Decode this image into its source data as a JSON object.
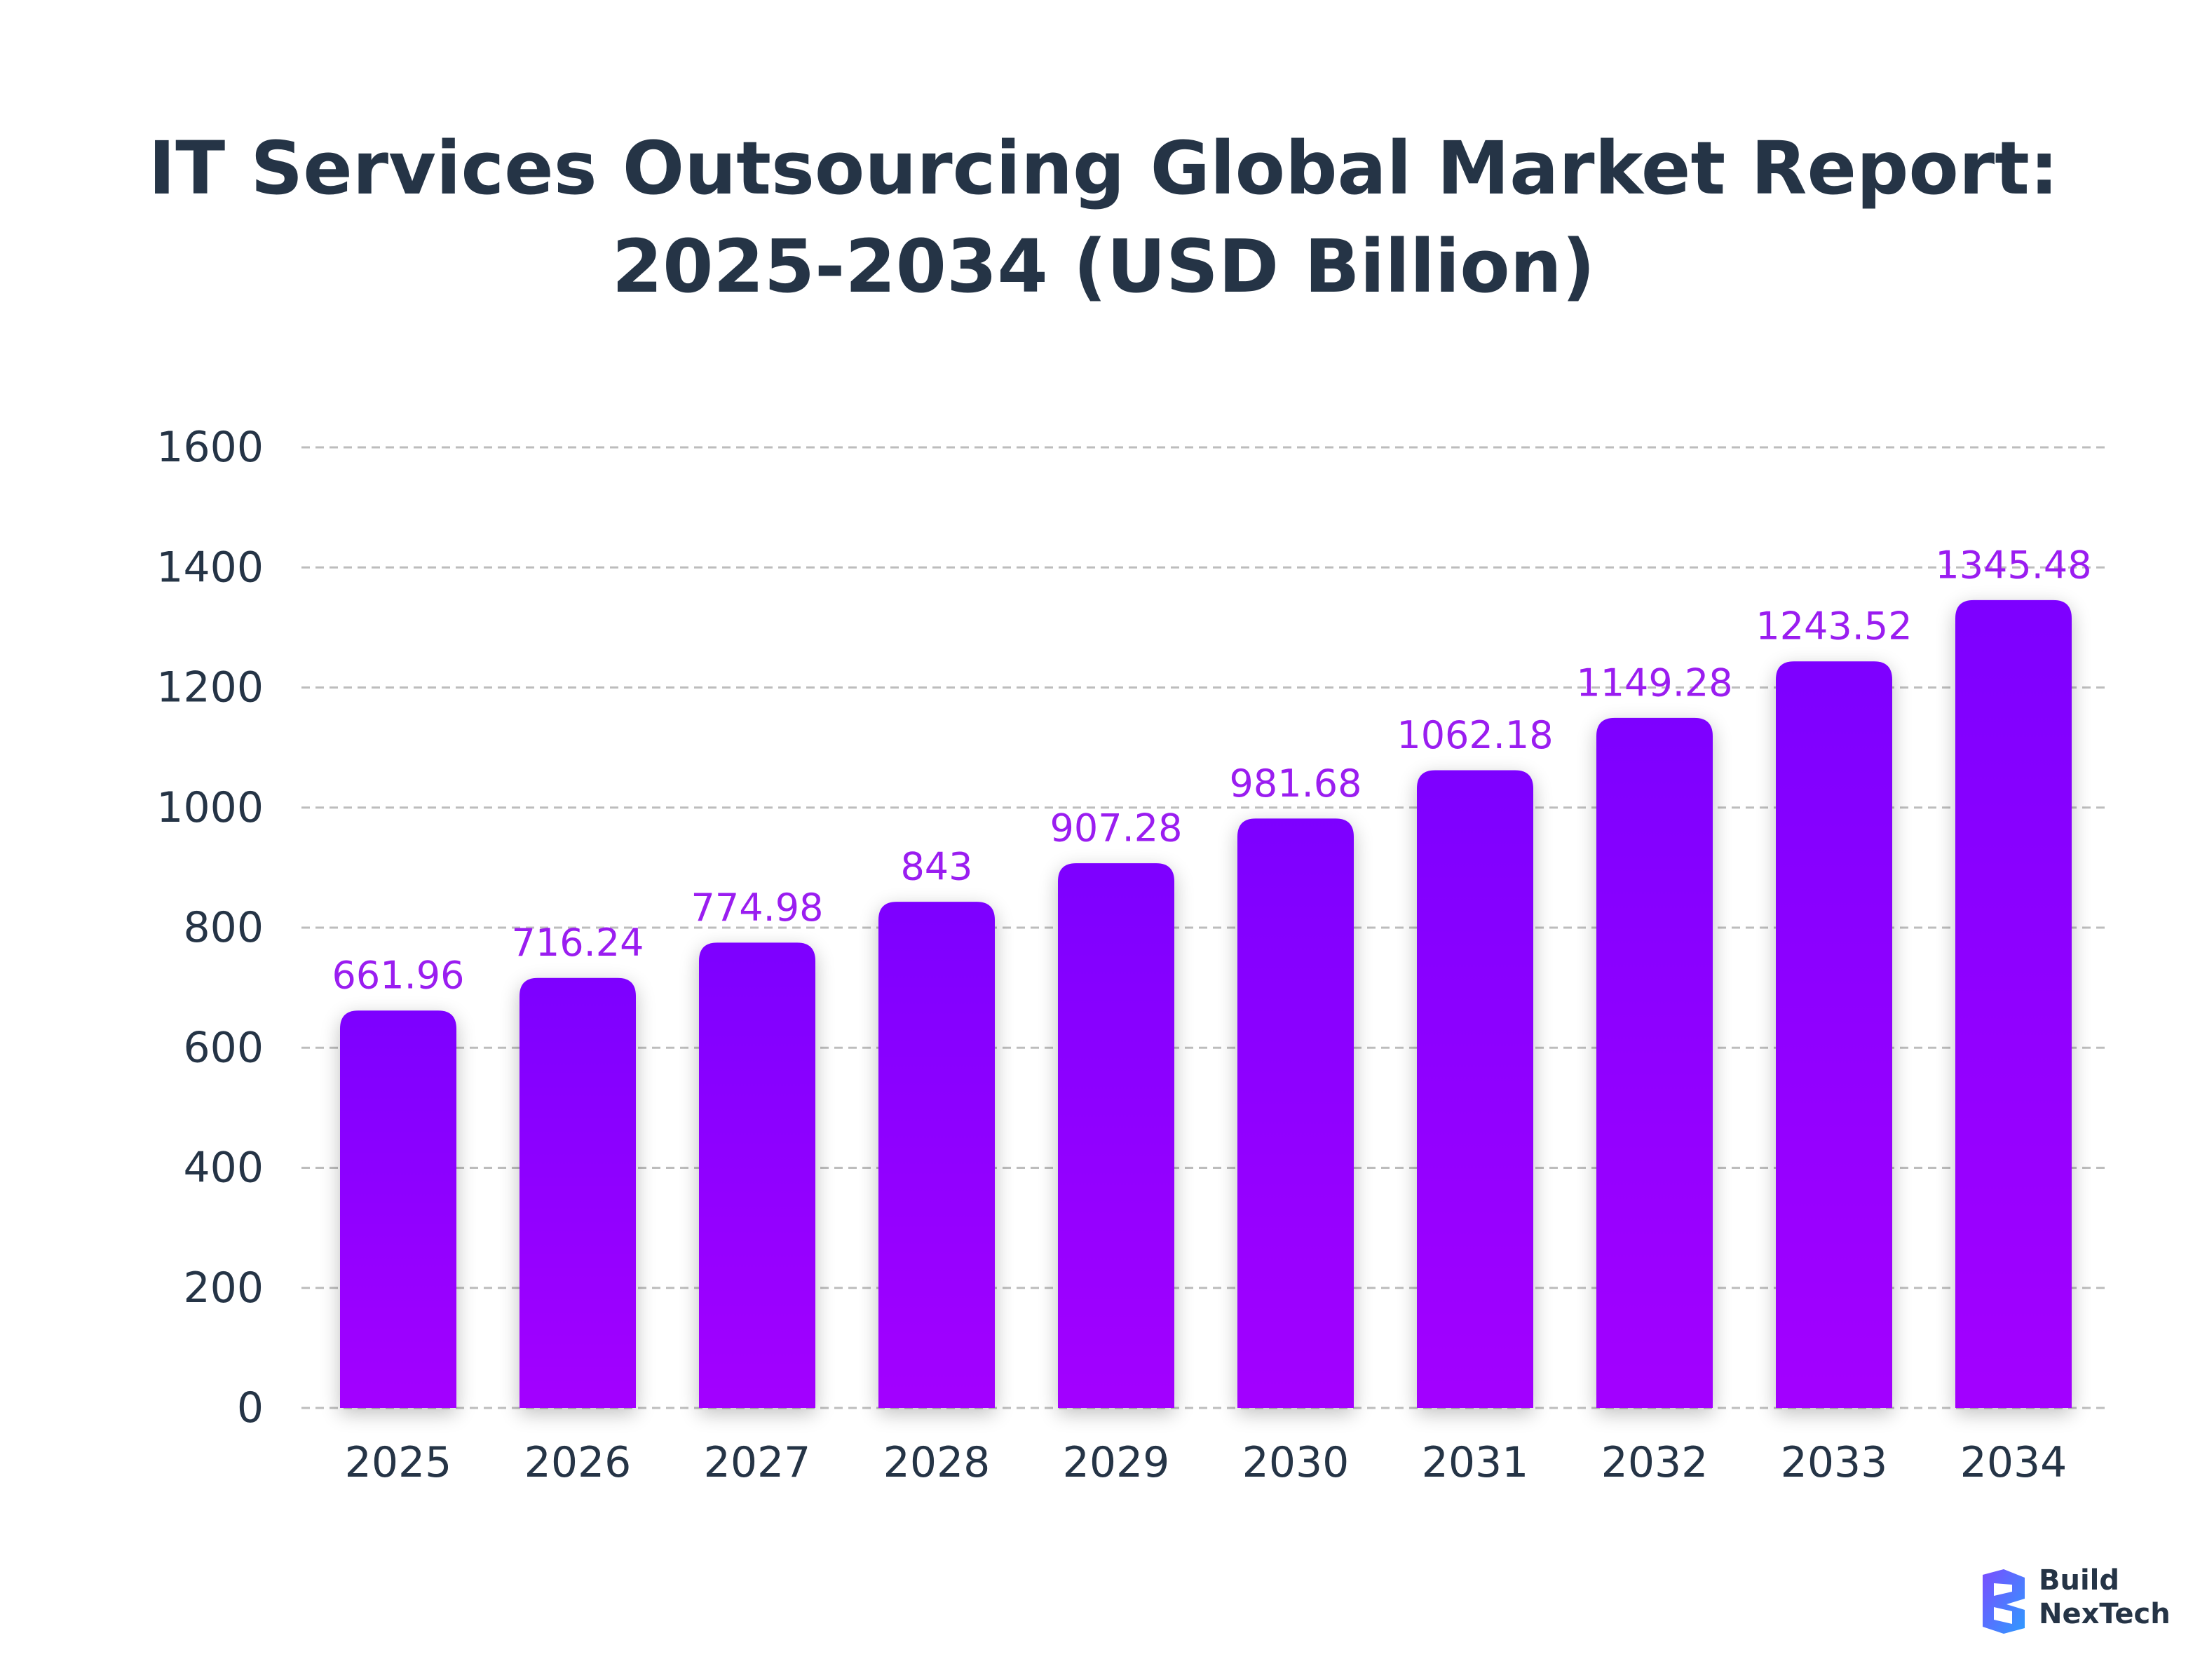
{
  "chart_data": {
    "type": "bar",
    "title_lines": [
      "IT Services Outsourcing Global Market Report:",
      "2025-2034 (USD Billion)"
    ],
    "categories": [
      "2025",
      "2026",
      "2027",
      "2028",
      "2029",
      "2030",
      "2031",
      "2032",
      "2033",
      "2034"
    ],
    "values": [
      661.96,
      716.24,
      774.98,
      843,
      907.28,
      981.68,
      1062.18,
      1149.28,
      1243.52,
      1345.48
    ],
    "value_labels": [
      "661.96",
      "716.24",
      "774.98",
      "843",
      "907.28",
      "981.68",
      "1062.18",
      "1149.28",
      "1243.52",
      "1345.48"
    ],
    "y_ticks": [
      0,
      200,
      400,
      600,
      800,
      1000,
      1200,
      1400,
      1600
    ],
    "ylim": [
      0,
      1600
    ],
    "grid": "horizontal-dashed",
    "legend": "none",
    "colors": {
      "bar_top": "#7d00ff",
      "bar_bottom": "#a300ff",
      "data_label": "#9a1df0",
      "text": "#253446",
      "grid": "#bdbdbd"
    }
  },
  "logo": {
    "lines": [
      "Build",
      "NexTech"
    ],
    "colors": [
      "#7a4dff",
      "#2e9bff"
    ]
  }
}
